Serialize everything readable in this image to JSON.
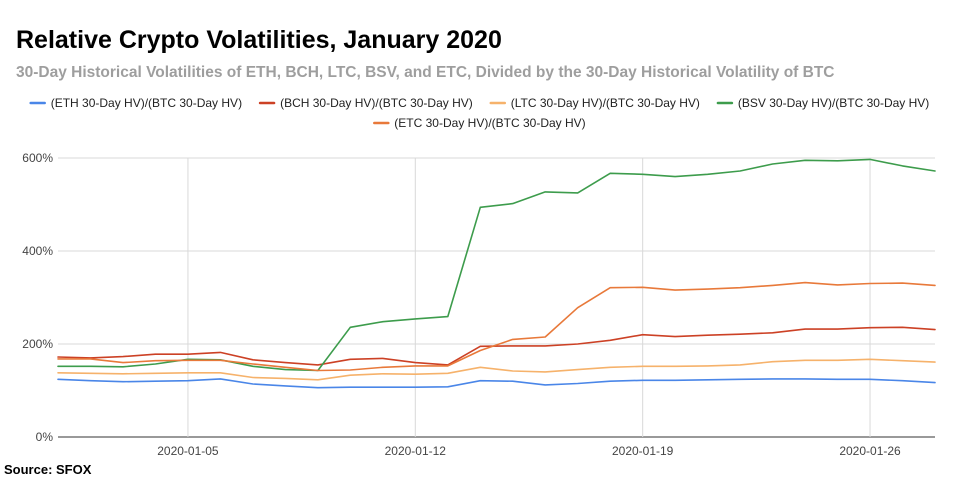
{
  "title": "Relative Crypto Volatilities, January 2020",
  "subtitle": "30-Day Historical Volatilities of ETH, BCH, LTC, BSV, and ETC, Divided by the 30-Day Historical Volatility of BTC",
  "source": "Source: SFOX",
  "chart_data": {
    "type": "line",
    "title": "Relative Crypto Volatilities, January 2020",
    "subtitle": "30-Day Historical Volatilities of ETH, BCH, LTC, BSV, and ETC, Divided by the 30-Day Historical Volatility of BTC",
    "xlabel": "",
    "ylabel": "",
    "x": [
      "2020-01-01",
      "2020-01-02",
      "2020-01-03",
      "2020-01-04",
      "2020-01-05",
      "2020-01-06",
      "2020-01-07",
      "2020-01-08",
      "2020-01-09",
      "2020-01-10",
      "2020-01-11",
      "2020-01-12",
      "2020-01-13",
      "2020-01-14",
      "2020-01-15",
      "2020-01-16",
      "2020-01-17",
      "2020-01-18",
      "2020-01-19",
      "2020-01-20",
      "2020-01-21",
      "2020-01-22",
      "2020-01-23",
      "2020-01-24",
      "2020-01-25",
      "2020-01-26",
      "2020-01-27",
      "2020-01-28"
    ],
    "x_ticks": [
      "2020-01-05",
      "2020-01-12",
      "2020-01-19",
      "2020-01-26"
    ],
    "y_ticks": [
      0,
      200,
      400,
      600
    ],
    "y_tick_labels": [
      "0%",
      "200%",
      "400%",
      "600%"
    ],
    "ylim": [
      0,
      600
    ],
    "grid": "horizontal",
    "legend_position": "top",
    "series": [
      {
        "name": "(ETH 30-Day HV)/(BTC 30-Day HV)",
        "color": "#4a86e8",
        "values": [
          124,
          121,
          119,
          120,
          121,
          125,
          114,
          110,
          106,
          107,
          107,
          107,
          108,
          121,
          120,
          112,
          115,
          120,
          122,
          122,
          123,
          124,
          125,
          125,
          124,
          124,
          121,
          117
        ]
      },
      {
        "name": "(BCH 30-Day HV)/(BTC 30-Day HV)",
        "color": "#cc4125",
        "values": [
          172,
          170,
          173,
          178,
          178,
          182,
          166,
          160,
          155,
          167,
          169,
          160,
          155,
          195,
          196,
          196,
          200,
          208,
          220,
          216,
          219,
          221,
          224,
          232,
          232,
          235,
          236,
          231
        ]
      },
      {
        "name": "(LTC 30-Day HV)/(BTC 30-Day HV)",
        "color": "#f6b26b",
        "values": [
          138,
          137,
          136,
          137,
          138,
          138,
          128,
          126,
          123,
          133,
          136,
          135,
          137,
          150,
          142,
          140,
          145,
          150,
          152,
          152,
          153,
          155,
          162,
          165,
          165,
          167,
          164,
          161
        ]
      },
      {
        "name": "(BSV 30-Day HV)/(BTC 30-Day HV)",
        "color": "#3d9c4c",
        "values": [
          152,
          152,
          151,
          157,
          167,
          166,
          152,
          145,
          143,
          236,
          248,
          254,
          259,
          494,
          502,
          527,
          525,
          567,
          565,
          560,
          565,
          572,
          587,
          595,
          594,
          597,
          583,
          572
        ]
      },
      {
        "name": "(ETC 30-Day HV)/(BTC 30-Day HV)",
        "color": "#e8793a",
        "values": [
          168,
          168,
          160,
          164,
          165,
          165,
          157,
          150,
          143,
          144,
          150,
          153,
          153,
          186,
          210,
          215,
          278,
          321,
          322,
          316,
          318,
          321,
          326,
          332,
          327,
          330,
          331,
          326
        ]
      }
    ]
  }
}
